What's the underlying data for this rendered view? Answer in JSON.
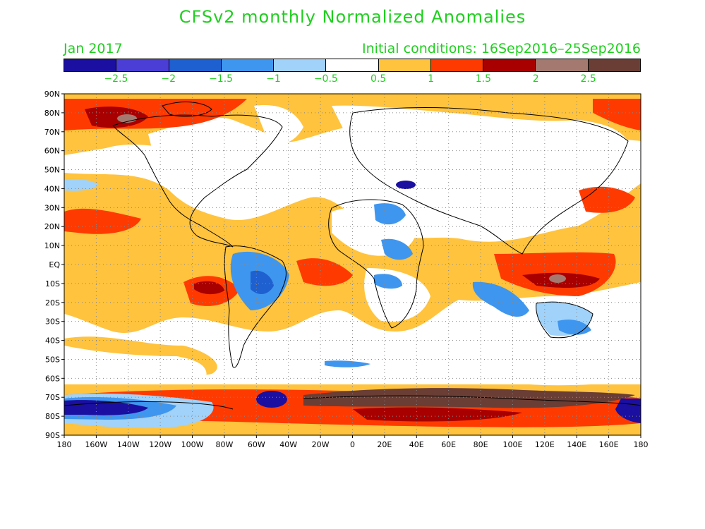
{
  "title": "CFSv2 monthly Normalized Anomalies",
  "month": "Jan 2017",
  "init": "Initial conditions: 16Sep2016–25Sep2016",
  "colorbar": {
    "colors": [
      "#1a0fa0",
      "#4a3ed6",
      "#1f60d0",
      "#3f96ee",
      "#a0d2fa",
      "#ffffff",
      "#ffc33d",
      "#ff3a00",
      "#a80000",
      "#a47a70",
      "#6a3e34"
    ],
    "labels": [
      "−2.5",
      "−2",
      "−1.5",
      "−1",
      "−0.5",
      "0.5",
      "1",
      "1.5",
      "2",
      "2.5"
    ]
  },
  "lat_labels": [
    "90N",
    "80N",
    "70N",
    "60N",
    "50N",
    "40N",
    "30N",
    "20N",
    "10N",
    "EQ",
    "10S",
    "20S",
    "30S",
    "40S",
    "50S",
    "60S",
    "70S",
    "80S",
    "90S"
  ],
  "lon_labels": [
    "180",
    "160W",
    "140W",
    "120W",
    "100W",
    "80W",
    "60W",
    "40W",
    "20W",
    "0",
    "20E",
    "40E",
    "60E",
    "80E",
    "100E",
    "120E",
    "140E",
    "160E",
    "180"
  ]
}
